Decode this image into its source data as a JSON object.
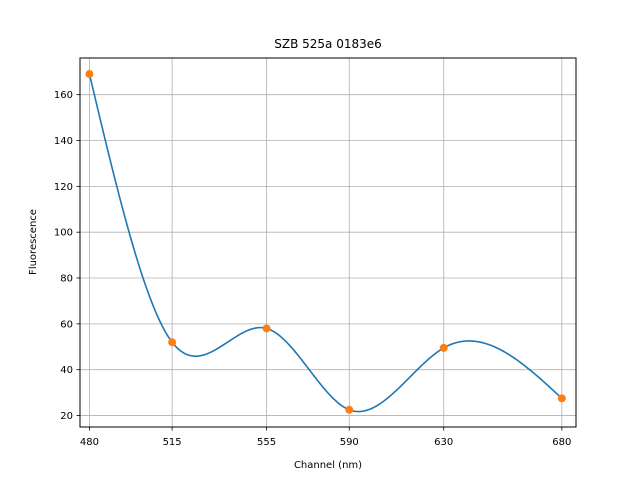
{
  "chart_data": {
    "type": "line",
    "title": "SZB 525a 0183e6",
    "xlabel": "Channel (nm)",
    "ylabel": "Fluorescence",
    "x_ticks": [
      "480",
      "515",
      "555",
      "590",
      "630",
      "680"
    ],
    "y_ticks": [
      "20",
      "40",
      "60",
      "80",
      "100",
      "120",
      "140",
      "160"
    ],
    "grid": true,
    "points": {
      "x": [
        480,
        515,
        555,
        590,
        630,
        680
      ],
      "y": [
        169,
        52,
        58,
        22.5,
        49.5,
        27.5
      ],
      "color": "#ff7f0e"
    },
    "curve": {
      "color": "#1f77b4"
    },
    "ylim": [
      15,
      176
    ],
    "xlim": [
      476,
      686
    ]
  }
}
